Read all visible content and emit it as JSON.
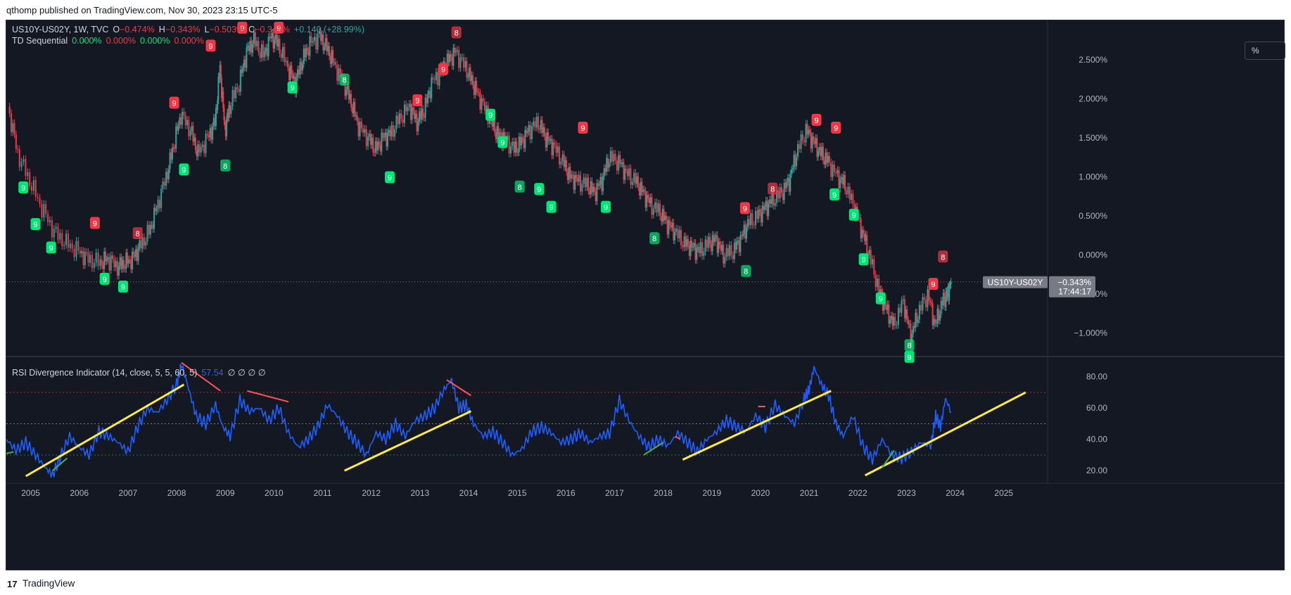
{
  "publish_line": "qthomp published on TradingView.com, Nov 30, 2023 23:15 UTC-5",
  "footer": {
    "logo_glyph": "17",
    "brand": "TradingView"
  },
  "scale_button": "%",
  "legend": {
    "symbol": "US10Y-US02Y, 1W, TVC",
    "o_label": "O",
    "o_value": "−0.474%",
    "h_label": "H",
    "h_value": "−0.343%",
    "l_label": "L",
    "l_value": "−0.503%",
    "c_label": "C",
    "c_value": "−0.343%",
    "change": "+0.140 (+28.99%)",
    "td_name": "TD Sequential",
    "td_values": [
      "0.000%",
      "0.000%",
      "0.000%",
      "0.000%"
    ],
    "rsi_name": "RSI Divergence Indicator (14, close, 5, 5, 60, 5)",
    "rsi_value": "57.54",
    "rsi_flags": "∅ ∅ ∅ ∅"
  },
  "price_label": {
    "symbol": "US10Y-US02Y",
    "value": "−0.343%",
    "timer": "17:44:17"
  },
  "colors": {
    "up": "#26a69a",
    "down": "#f23645",
    "rsi": "#1e5eff",
    "trend": "#ffeb3b",
    "td_green": "#00e676",
    "td_red": "#f23645"
  },
  "chart_data": [
    {
      "type": "line",
      "title": "US10Y-US02Y, 1W, TVC",
      "y_unit": "%",
      "y_ticks": [
        "2.500%",
        "2.000%",
        "1.500%",
        "1.000%",
        "0.500%",
        "0.000%",
        "−0.500%",
        "−1.000%"
      ],
      "y_tick_values": [
        2.5,
        2.0,
        1.5,
        1.0,
        0.5,
        0.0,
        -0.5,
        -1.0
      ],
      "ylim": [
        -1.3,
        2.95
      ],
      "x_ticks": [
        "2005",
        "2006",
        "2007",
        "2008",
        "2009",
        "2010",
        "2011",
        "2012",
        "2013",
        "2014",
        "2015",
        "2016",
        "2017",
        "2018",
        "2019",
        "2020",
        "2021",
        "2022",
        "2023",
        "2024",
        "2025"
      ],
      "xlim": [
        2004.5,
        2025.9
      ],
      "series": [
        {
          "x": [
            2004.55,
            2004.75,
            2005.0,
            2005.25,
            2005.5,
            2005.75,
            2006.0,
            2006.2,
            2006.45,
            2006.6,
            2006.8,
            2006.95,
            2007.1,
            2007.25,
            2007.45,
            2007.6,
            2007.8,
            2007.95,
            2008.1,
            2008.3,
            2008.45,
            2008.65,
            2008.8,
            2008.9,
            2009.0,
            2009.1,
            2009.3,
            2009.45,
            2009.6,
            2009.8,
            2009.95,
            2010.1,
            2010.3,
            2010.45,
            2010.6,
            2010.75,
            2010.95,
            2011.1,
            2011.25,
            2011.45,
            2011.6,
            2011.75,
            2011.95,
            2012.1,
            2012.25,
            2012.4,
            2012.6,
            2012.8,
            2012.95,
            2013.1,
            2013.25,
            2013.45,
            2013.6,
            2013.75,
            2013.95,
            2014.1,
            2014.25,
            2014.45,
            2014.6,
            2014.75,
            2014.95,
            2015.1,
            2015.25,
            2015.45,
            2015.6,
            2015.75,
            2015.95,
            2016.1,
            2016.25,
            2016.45,
            2016.6,
            2016.75,
            2016.9,
            2017.1,
            2017.25,
            2017.45,
            2017.6,
            2017.75,
            2017.95,
            2018.1,
            2018.25,
            2018.45,
            2018.6,
            2018.75,
            2018.95,
            2019.1,
            2019.25,
            2019.45,
            2019.6,
            2019.75,
            2019.95,
            2020.1,
            2020.25,
            2020.45,
            2020.6,
            2020.75,
            2020.95,
            2021.1,
            2021.25,
            2021.4,
            2021.6,
            2021.75,
            2021.95,
            2022.1,
            2022.25,
            2022.45,
            2022.6,
            2022.75,
            2022.95,
            2023.1,
            2023.25,
            2023.45,
            2023.6,
            2023.75,
            2023.85,
            2023.92
          ],
          "values": [
            1.9,
            1.3,
            0.95,
            0.6,
            0.3,
            0.15,
            0.05,
            -0.05,
            -0.1,
            -0.05,
            -0.15,
            -0.1,
            -0.05,
            0.1,
            0.3,
            0.6,
            1.0,
            1.4,
            1.8,
            1.6,
            1.3,
            1.5,
            1.7,
            2.4,
            1.6,
            1.9,
            2.2,
            2.6,
            2.75,
            2.55,
            2.8,
            2.7,
            2.4,
            2.2,
            2.5,
            2.7,
            2.8,
            2.65,
            2.45,
            2.2,
            1.95,
            1.65,
            1.5,
            1.35,
            1.5,
            1.55,
            1.75,
            1.9,
            1.7,
            1.85,
            2.2,
            2.35,
            2.5,
            2.6,
            2.4,
            2.2,
            2.0,
            1.75,
            1.55,
            1.5,
            1.35,
            1.45,
            1.6,
            1.7,
            1.5,
            1.4,
            1.2,
            1.0,
            0.95,
            0.9,
            0.8,
            0.95,
            1.25,
            1.2,
            1.05,
            0.95,
            0.8,
            0.65,
            0.55,
            0.4,
            0.3,
            0.15,
            0.1,
            0.05,
            0.15,
            0.2,
            0.0,
            0.05,
            0.2,
            0.4,
            0.5,
            0.6,
            0.7,
            0.8,
            0.95,
            1.3,
            1.6,
            1.45,
            1.3,
            1.2,
            1.0,
            0.9,
            0.6,
            0.3,
            0.0,
            -0.45,
            -0.7,
            -0.9,
            -0.6,
            -1.05,
            -0.75,
            -0.5,
            -0.9,
            -0.6,
            -0.5,
            -0.343
          ]
        }
      ]
    },
    {
      "type": "line",
      "title": "RSI Divergence Indicator (14, close, 5, 5, 60, 5)",
      "y_ticks": [
        "80.00",
        "60.00",
        "40.00",
        "20.00"
      ],
      "y_tick_values": [
        80,
        60,
        40,
        20
      ],
      "ylim": [
        12,
        92
      ],
      "levels": [
        70,
        50,
        30
      ],
      "x_ticks": [
        "2005",
        "2006",
        "2007",
        "2008",
        "2009",
        "2010",
        "2011",
        "2012",
        "2013",
        "2014",
        "2015",
        "2016",
        "2017",
        "2018",
        "2019",
        "2020",
        "2021",
        "2022",
        "2023",
        "2024",
        "2025"
      ],
      "xlim": [
        2004.5,
        2025.9
      ],
      "series": [
        {
          "x": [
            2004.5,
            2004.7,
            2004.9,
            2005.1,
            2005.3,
            2005.45,
            2005.6,
            2005.8,
            2006.0,
            2006.2,
            2006.4,
            2006.6,
            2006.8,
            2007.0,
            2007.2,
            2007.4,
            2007.6,
            2007.8,
            2008.0,
            2008.1,
            2008.25,
            2008.4,
            2008.6,
            2008.8,
            2008.95,
            2009.1,
            2009.3,
            2009.5,
            2009.7,
            2009.9,
            2010.1,
            2010.3,
            2010.5,
            2010.7,
            2010.9,
            2011.1,
            2011.3,
            2011.5,
            2011.7,
            2011.9,
            2012.1,
            2012.3,
            2012.5,
            2012.7,
            2012.9,
            2013.1,
            2013.3,
            2013.5,
            2013.65,
            2013.8,
            2013.95,
            2014.1,
            2014.3,
            2014.5,
            2014.7,
            2014.9,
            2015.1,
            2015.3,
            2015.5,
            2015.7,
            2015.9,
            2016.1,
            2016.3,
            2016.5,
            2016.7,
            2016.9,
            2017.1,
            2017.3,
            2017.5,
            2017.7,
            2017.9,
            2018.1,
            2018.3,
            2018.5,
            2018.7,
            2018.9,
            2019.1,
            2019.3,
            2019.5,
            2019.7,
            2019.9,
            2020.1,
            2020.3,
            2020.5,
            2020.7,
            2020.9,
            2021.0,
            2021.1,
            2021.25,
            2021.4,
            2021.55,
            2021.7,
            2021.9,
            2022.1,
            2022.3,
            2022.5,
            2022.7,
            2022.9,
            2023.1,
            2023.3,
            2023.5,
            2023.6,
            2023.7,
            2023.8,
            2023.92
          ],
          "values": [
            40,
            33,
            38,
            30,
            22,
            17,
            28,
            42,
            35,
            30,
            45,
            42,
            38,
            32,
            48,
            60,
            57,
            65,
            75,
            88,
            72,
            55,
            50,
            62,
            48,
            42,
            65,
            58,
            60,
            52,
            60,
            44,
            35,
            40,
            48,
            62,
            55,
            45,
            38,
            30,
            44,
            40,
            50,
            42,
            52,
            55,
            60,
            72,
            78,
            60,
            62,
            50,
            42,
            45,
            38,
            30,
            34,
            45,
            48,
            44,
            38,
            40,
            44,
            38,
            42,
            44,
            65,
            52,
            42,
            35,
            40,
            36,
            44,
            38,
            32,
            40,
            45,
            52,
            48,
            45,
            55,
            48,
            62,
            55,
            50,
            66,
            72,
            86,
            75,
            68,
            50,
            42,
            55,
            36,
            27,
            40,
            30,
            28,
            32,
            38,
            36,
            55,
            48,
            66,
            57.54
          ]
        }
      ]
    }
  ],
  "td_markers": [
    {
      "year": 2004.85,
      "price": 0.97,
      "label": "9",
      "color": "green",
      "pos": "below"
    },
    {
      "year": 2005.1,
      "price": 0.5,
      "label": "9",
      "color": "green",
      "pos": "below"
    },
    {
      "year": 2005.42,
      "price": 0.2,
      "label": "9",
      "color": "green",
      "pos": "below"
    },
    {
      "year": 2006.32,
      "price": 0.28,
      "label": "9",
      "color": "red",
      "pos": "above"
    },
    {
      "year": 2006.52,
      "price": -0.2,
      "label": "9",
      "color": "green",
      "pos": "below"
    },
    {
      "year": 2006.9,
      "price": -0.3,
      "label": "9",
      "color": "green",
      "pos": "below"
    },
    {
      "year": 2007.2,
      "price": 0.15,
      "label": "8",
      "color": "red",
      "pos": "above"
    },
    {
      "year": 2007.95,
      "price": 1.82,
      "label": "9",
      "color": "red",
      "pos": "above"
    },
    {
      "year": 2008.15,
      "price": 1.2,
      "label": "9",
      "color": "green",
      "pos": "below"
    },
    {
      "year": 2008.7,
      "price": 2.55,
      "label": "9",
      "color": "red",
      "pos": "above"
    },
    {
      "year": 2009.0,
      "price": 1.25,
      "label": "8",
      "color": "green",
      "pos": "below"
    },
    {
      "year": 2009.35,
      "price": 2.78,
      "label": "9",
      "color": "red",
      "pos": "above"
    },
    {
      "year": 2010.1,
      "price": 2.78,
      "label": "9",
      "color": "red",
      "pos": "above"
    },
    {
      "year": 2010.38,
      "price": 2.25,
      "label": "9",
      "color": "green",
      "pos": "below"
    },
    {
      "year": 2010.98,
      "price": 2.95,
      "label": "9",
      "color": "red",
      "pos": "above"
    },
    {
      "year": 2011.45,
      "price": 2.35,
      "label": "8",
      "color": "green",
      "pos": "below"
    },
    {
      "year": 2012.38,
      "price": 1.1,
      "label": "9",
      "color": "green",
      "pos": "below"
    },
    {
      "year": 2012.95,
      "price": 1.85,
      "label": "9",
      "color": "red",
      "pos": "above"
    },
    {
      "year": 2013.48,
      "price": 2.25,
      "label": "9",
      "color": "red",
      "pos": "above"
    },
    {
      "year": 2013.75,
      "price": 2.72,
      "label": "8",
      "color": "red",
      "pos": "above"
    },
    {
      "year": 2014.45,
      "price": 1.9,
      "label": "9",
      "color": "green",
      "pos": "below"
    },
    {
      "year": 2014.7,
      "price": 1.55,
      "label": "9",
      "color": "green",
      "pos": "below"
    },
    {
      "year": 2015.05,
      "price": 0.98,
      "label": "8",
      "color": "green",
      "pos": "below"
    },
    {
      "year": 2015.45,
      "price": 0.95,
      "label": "9",
      "color": "green",
      "pos": "below"
    },
    {
      "year": 2015.7,
      "price": 0.72,
      "label": "9",
      "color": "green",
      "pos": "below"
    },
    {
      "year": 2016.35,
      "price": 1.5,
      "label": "9",
      "color": "red",
      "pos": "above"
    },
    {
      "year": 2016.82,
      "price": 0.72,
      "label": "9",
      "color": "green",
      "pos": "below"
    },
    {
      "year": 2017.82,
      "price": 0.32,
      "label": "8",
      "color": "green",
      "pos": "below"
    },
    {
      "year": 2019.7,
      "price": -0.1,
      "label": "8",
      "color": "green",
      "pos": "below"
    },
    {
      "year": 2019.68,
      "price": 0.47,
      "label": "9",
      "color": "red",
      "pos": "above"
    },
    {
      "year": 2020.25,
      "price": 0.72,
      "label": "8",
      "color": "red",
      "pos": "above"
    },
    {
      "year": 2021.15,
      "price": 1.6,
      "label": "9",
      "color": "red",
      "pos": "above"
    },
    {
      "year": 2021.55,
      "price": 1.5,
      "label": "9",
      "color": "red",
      "pos": "above"
    },
    {
      "year": 2021.52,
      "price": 0.88,
      "label": "9",
      "color": "green",
      "pos": "below"
    },
    {
      "year": 2021.92,
      "price": 0.62,
      "label": "9",
      "color": "green",
      "pos": "below"
    },
    {
      "year": 2022.12,
      "price": 0.05,
      "label": "9",
      "color": "green",
      "pos": "below"
    },
    {
      "year": 2022.47,
      "price": -0.45,
      "label": "9",
      "color": "green",
      "pos": "below"
    },
    {
      "year": 2023.06,
      "price": -1.05,
      "label": "8",
      "color": "green",
      "pos": "below"
    },
    {
      "year": 2023.06,
      "price": -1.2,
      "label": "9",
      "color": "green",
      "pos": "below"
    },
    {
      "year": 2023.55,
      "price": -0.5,
      "label": "9",
      "color": "red",
      "pos": "above"
    },
    {
      "year": 2023.75,
      "price": -0.15,
      "label": "8",
      "color": "red",
      "pos": "above"
    }
  ],
  "rsi_trendlines": [
    {
      "x1": 2004.9,
      "y1": 16.5,
      "x2": 2008.15,
      "y2": 75,
      "color": "yellow"
    },
    {
      "x1": 2011.45,
      "y1": 20,
      "x2": 2014.05,
      "y2": 58,
      "color": "yellow"
    },
    {
      "x1": 2018.4,
      "y1": 27,
      "x2": 2021.45,
      "y2": 71,
      "color": "yellow"
    },
    {
      "x1": 2022.15,
      "y1": 17,
      "x2": 2025.45,
      "y2": 70,
      "color": "yellow"
    },
    {
      "x1": 2008.1,
      "y1": 89,
      "x2": 2008.9,
      "y2": 71,
      "color": "red"
    },
    {
      "x1": 2009.45,
      "y1": 71,
      "x2": 2010.3,
      "y2": 64,
      "color": "red"
    },
    {
      "x1": 2013.55,
      "y1": 78,
      "x2": 2014.05,
      "y2": 68,
      "color": "red"
    },
    {
      "x1": 2019.95,
      "y1": 61,
      "x2": 2020.1,
      "y2": 61,
      "color": "red"
    },
    {
      "x1": 2018.25,
      "y1": 42,
      "x2": 2018.35,
      "y2": 40,
      "color": "red"
    },
    {
      "x1": 2017.6,
      "y1": 30,
      "x2": 2018.0,
      "y2": 38,
      "color": "green"
    },
    {
      "x1": 2005.45,
      "y1": 20,
      "x2": 2005.75,
      "y2": 28,
      "color": "green"
    },
    {
      "x1": 2022.5,
      "y1": 22,
      "x2": 2022.75,
      "y2": 33,
      "color": "green"
    },
    {
      "x1": 2004.5,
      "y1": 31,
      "x2": 2004.65,
      "y2": 32,
      "color": "green"
    }
  ]
}
